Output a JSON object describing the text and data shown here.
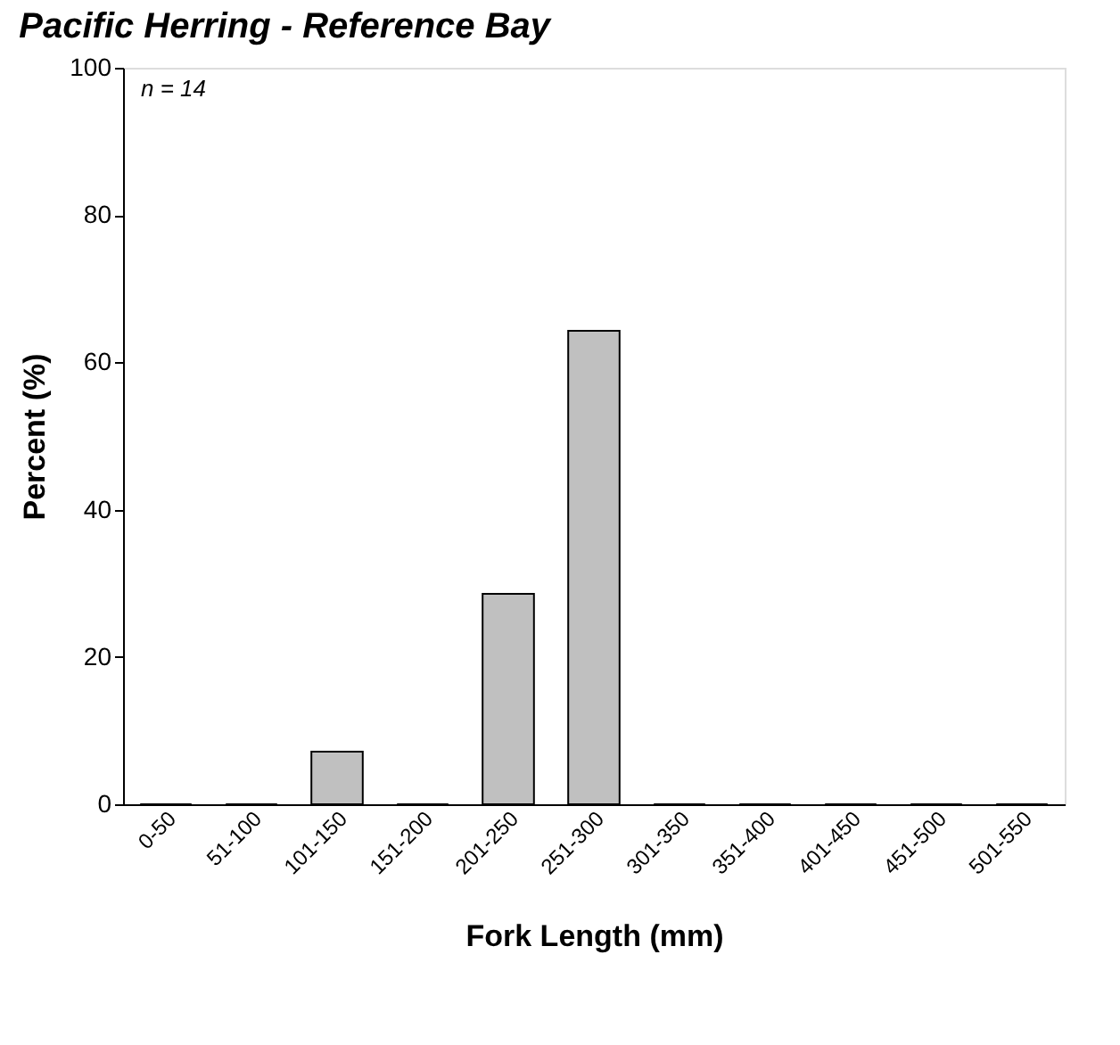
{
  "chart_data": {
    "type": "bar",
    "title": "Pacific Herring - Reference Bay",
    "xlabel": "Fork Length (mm)",
    "ylabel": "Percent (%)",
    "categories": [
      "0-50",
      "51-100",
      "101-150",
      "151-200",
      "201-250",
      "251-300",
      "301-350",
      "351-400",
      "401-450",
      "451-500",
      "501-550"
    ],
    "values": [
      0,
      0,
      7.14,
      0,
      28.57,
      64.29,
      0,
      0,
      0,
      0,
      0
    ],
    "color": "#c0c0c0",
    "ylim": [
      0,
      100
    ],
    "yticks": [
      0,
      20,
      40,
      60,
      80,
      100
    ],
    "grid": false,
    "annotations": [
      "n = 14"
    ]
  }
}
